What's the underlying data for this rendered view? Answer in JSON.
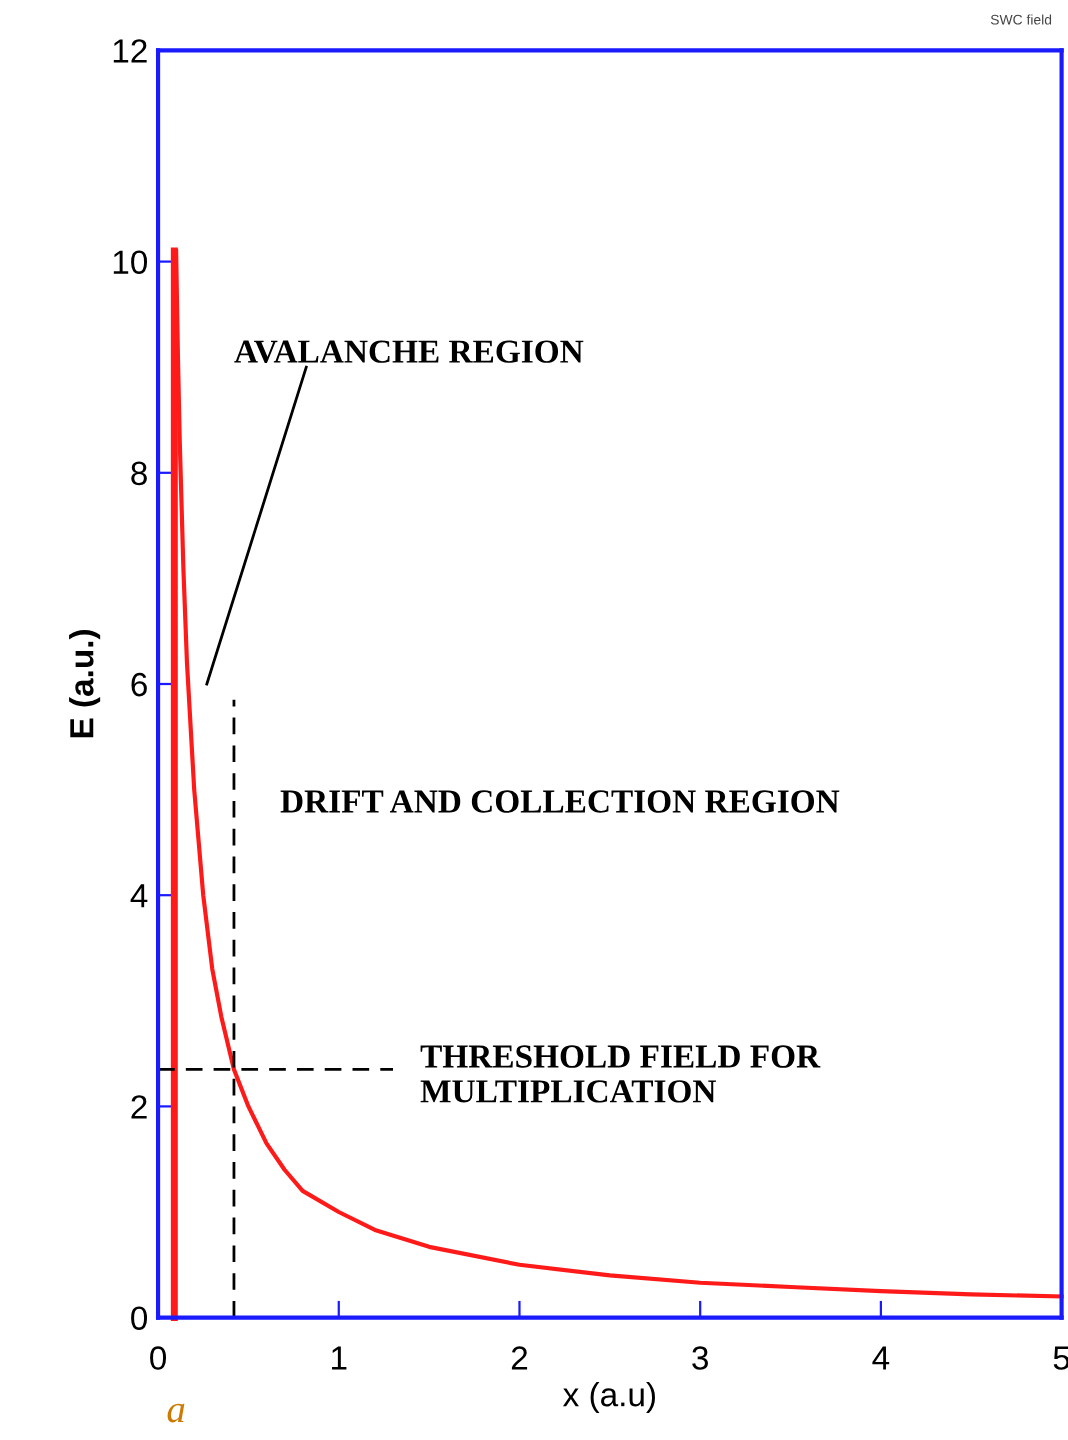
{
  "chart_data": {
    "type": "line",
    "title": "SWC field",
    "xlabel": "x (a.u)",
    "ylabel": "E (a.u.)",
    "xlim": [
      0,
      5
    ],
    "ylim": [
      0,
      12
    ],
    "xticks": [
      0,
      1,
      2,
      3,
      4,
      5
    ],
    "yticks": [
      0,
      2,
      4,
      6,
      8,
      10,
      12
    ],
    "grid": false,
    "legend": false,
    "marker": "none",
    "series": [
      {
        "color": "#ff1a1a",
        "line_style": "solid",
        "x": [
          0.1,
          0.11,
          0.12,
          0.14,
          0.16,
          0.2,
          0.25,
          0.3,
          0.35,
          0.42,
          0.5,
          0.6,
          0.7,
          0.8,
          1.0,
          1.2,
          1.5,
          2,
          2.5,
          3,
          3.5,
          4,
          4.5,
          5
        ],
        "values": [
          10.1,
          9.1,
          8.3,
          7.1,
          6.2,
          5,
          4,
          3.3,
          2.85,
          2.35,
          2.0,
          1.65,
          1.4,
          1.2,
          1.0,
          0.83,
          0.67,
          0.5,
          0.4,
          0.33,
          0.29,
          0.25,
          0.22,
          0.2
        ]
      },
      {
        "color": "#ff1a1a",
        "line_style": "solid",
        "x": [
          0.09,
          0.09
        ],
        "values": [
          0,
          10.1
        ]
      },
      {
        "color": "#000000",
        "line_style": "dashed",
        "x": [
          0.42,
          0.42
        ],
        "values": [
          0,
          5.85
        ]
      },
      {
        "color": "#000000",
        "line_style": "dashed",
        "x": [
          0,
          1.3
        ],
        "values": [
          2.35,
          2.35
        ]
      },
      {
        "color": "#000000",
        "line_style": "solid",
        "x": [
          0.27,
          0.82
        ],
        "values": [
          6.0,
          9.0
        ]
      }
    ],
    "annotations": [
      "AVALANCHE REGION",
      "DRIFT AND COLLECTION REGION",
      "THRESHOLD FIELD FOR\nMULTIPLICATION",
      "a"
    ]
  }
}
